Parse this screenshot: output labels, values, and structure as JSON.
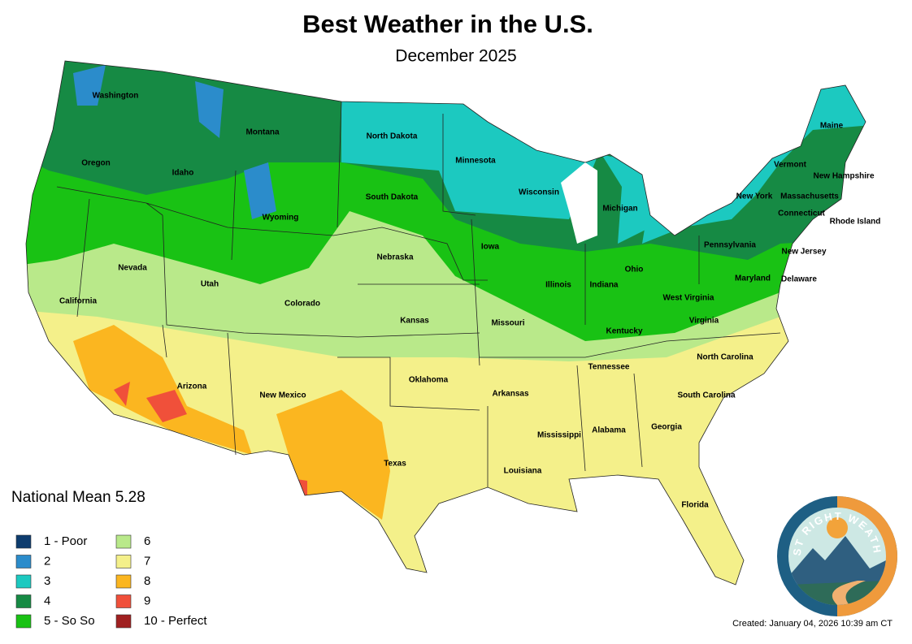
{
  "header": {
    "title": "Best Weather in the U.S.",
    "subtitle": "December 2025"
  },
  "national_mean": "National Mean 5.28",
  "legend": {
    "items": [
      {
        "label": "1 - Poor",
        "color": "#0d3c6e"
      },
      {
        "label": "2",
        "color": "#2b8ccb"
      },
      {
        "label": "3",
        "color": "#1cc9c0"
      },
      {
        "label": "4",
        "color": "#168a44"
      },
      {
        "label": "5 - So So",
        "color": "#19c214"
      },
      {
        "label": "6",
        "color": "#b9e98a"
      },
      {
        "label": "7",
        "color": "#f4f08a"
      },
      {
        "label": "8",
        "color": "#fbb620"
      },
      {
        "label": "9",
        "color": "#f0503a"
      },
      {
        "label": "10 - Perfect",
        "color": "#a02020"
      }
    ]
  },
  "states": [
    "Washington",
    "Montana",
    "North Dakota",
    "Minnesota",
    "Maine",
    "Oregon",
    "Idaho",
    "Vermont",
    "New Hampshire",
    "Wisconsin",
    "South Dakota",
    "New York",
    "Massachusetts",
    "Wyoming",
    "Michigan",
    "Connecticut",
    "Rhode Island",
    "Iowa",
    "Pennsylvania",
    "Nebraska",
    "New Jersey",
    "Nevada",
    "Utah",
    "Ohio",
    "Illinois",
    "Indiana",
    "Maryland",
    "Delaware",
    "California",
    "Colorado",
    "West Virginia",
    "Virginia",
    "Kansas",
    "Missouri",
    "Kentucky",
    "North Carolina",
    "Tennessee",
    "Oklahoma",
    "Arizona",
    "New Mexico",
    "Arkansas",
    "South Carolina",
    "Georgia",
    "Mississippi",
    "Alabama",
    "Texas",
    "Louisiana",
    "Florida"
  ],
  "logo": {
    "text": "JUST RIGHT WEATHER"
  },
  "footer": {
    "created": "Created: January 04, 2026 10:39 am CT"
  }
}
